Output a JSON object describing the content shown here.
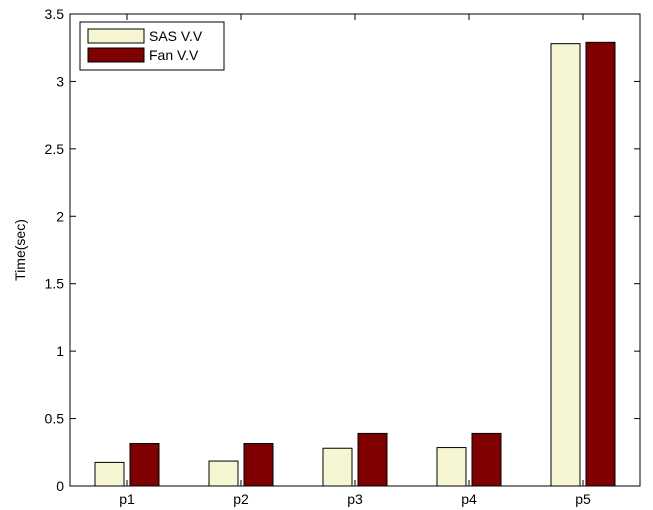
{
  "chart_data": {
    "type": "bar",
    "title": "",
    "xlabel": "",
    "ylabel": "Time(sec)",
    "categories": [
      "p1",
      "p2",
      "p3",
      "p4",
      "p5"
    ],
    "series": [
      {
        "name": "SAS V.V",
        "values": [
          0.175,
          0.185,
          0.28,
          0.285,
          3.28
        ],
        "color": "#f7f6d3"
      },
      {
        "name": "Fan V.V",
        "values": [
          0.315,
          0.315,
          0.39,
          0.39,
          3.29
        ],
        "color": "#7f0000"
      }
    ],
    "ylim": [
      0,
      3.5
    ],
    "yticks": [
      0,
      0.5,
      1,
      1.5,
      2,
      2.5,
      3,
      3.5
    ],
    "ytick_labels": [
      "0",
      "0.5",
      "1",
      "1.5",
      "2",
      "2.5",
      "3",
      "3.5"
    ],
    "grid": false,
    "legend_position": "top-left"
  }
}
